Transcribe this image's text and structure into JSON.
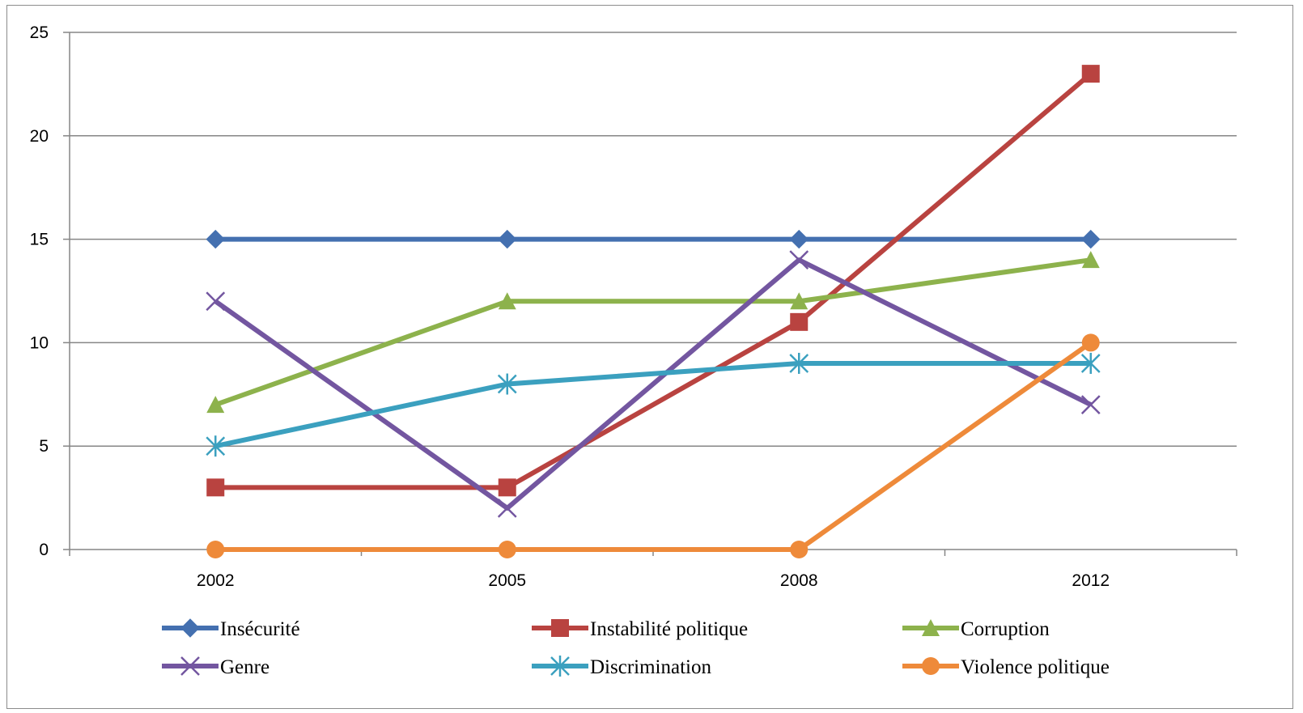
{
  "chart_data": {
    "type": "line",
    "title": "",
    "xlabel": "",
    "ylabel": "",
    "x": [
      "2002",
      "2005",
      "2008",
      "2012"
    ],
    "ylim": [
      0,
      25
    ],
    "yticks": [
      0,
      5,
      10,
      15,
      20,
      25
    ],
    "grid": true,
    "legend_position": "bottom",
    "series": [
      {
        "name": "Insécurité",
        "values": [
          15,
          15,
          15,
          15
        ],
        "color": "#4470B0",
        "marker": "diamond"
      },
      {
        "name": "Instabilité politique",
        "values": [
          3,
          3,
          11,
          23
        ],
        "color": "#B94340",
        "marker": "square"
      },
      {
        "name": "Corruption",
        "values": [
          7,
          12,
          12,
          14
        ],
        "color": "#8DB24C",
        "marker": "triangle"
      },
      {
        "name": "Genre",
        "values": [
          12,
          2,
          14,
          7
        ],
        "color": "#7356A0",
        "marker": "x"
      },
      {
        "name": "Discrimination",
        "values": [
          5,
          8,
          9,
          9
        ],
        "color": "#3BA0BF",
        "marker": "asterisk"
      },
      {
        "name": "Violence politique",
        "values": [
          0,
          0,
          0,
          10
        ],
        "color": "#EE8A3A",
        "marker": "circle"
      }
    ]
  }
}
